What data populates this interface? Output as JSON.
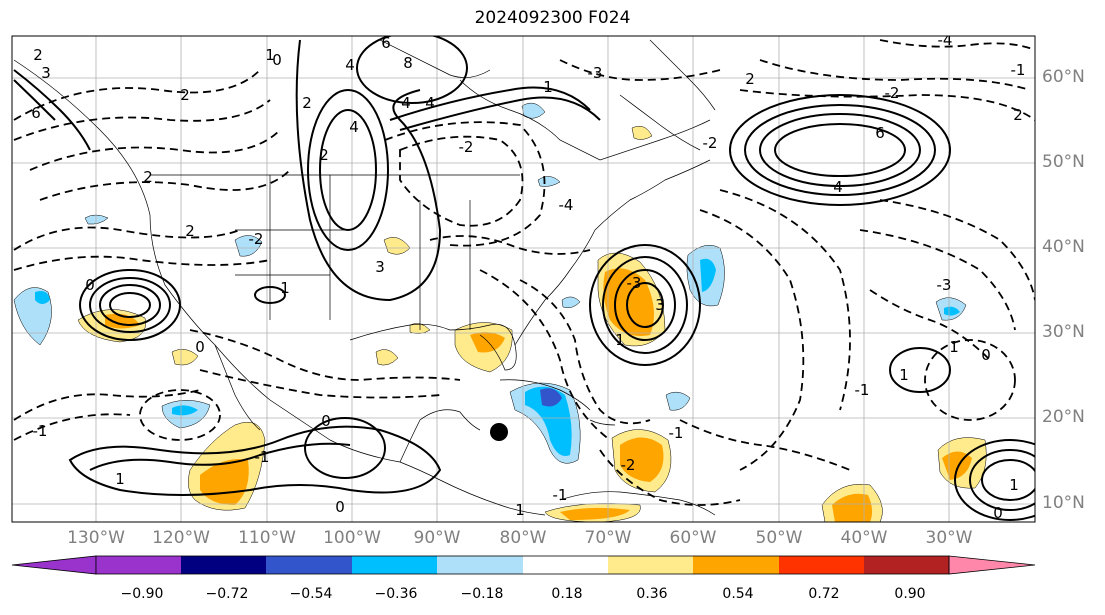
{
  "title": "2024092300 F024",
  "lat_labels": [
    "60°N",
    "50°N",
    "40°N",
    "30°N",
    "20°N",
    "10°N"
  ],
  "lon_labels": [
    "130°W",
    "120°W",
    "110°W",
    "100°W",
    "90°W",
    "80°W",
    "70°W",
    "60°W",
    "50°W",
    "40°W",
    "30°W"
  ],
  "colorbar": {
    "tick_labels": [
      "−0.90",
      "−0.72",
      "−0.54",
      "−0.36",
      "−0.18",
      "0.18",
      "0.36",
      "0.54",
      "0.72",
      "0.90"
    ],
    "colors": [
      "#9933cc",
      "#000080",
      "#3355cc",
      "#00bfff",
      "#aee0f9",
      "#ffffff",
      "#ffeb8c",
      "#ffa500",
      "#ff3300",
      "#b22222",
      "#ff88aa"
    ]
  },
  "contour_labels": [
    "2",
    "3",
    "6",
    "2",
    "0",
    "2",
    "6",
    "8",
    "4",
    "2",
    "-2",
    "2",
    "0",
    "3",
    "6",
    "4",
    "-2",
    "2",
    "-3",
    "1",
    "0",
    "-1",
    "1",
    "0",
    "-1",
    "-3",
    "1",
    "-2",
    "-1",
    "4",
    "0",
    "3",
    "1",
    "1",
    "2",
    "-1",
    "-4",
    "-3",
    "1",
    "4",
    "-2",
    "-2",
    "0",
    "-1",
    "1",
    "0",
    "-1",
    "1",
    "1",
    "4",
    "-4",
    "2"
  ],
  "marker": {
    "label": "storm-center"
  }
}
